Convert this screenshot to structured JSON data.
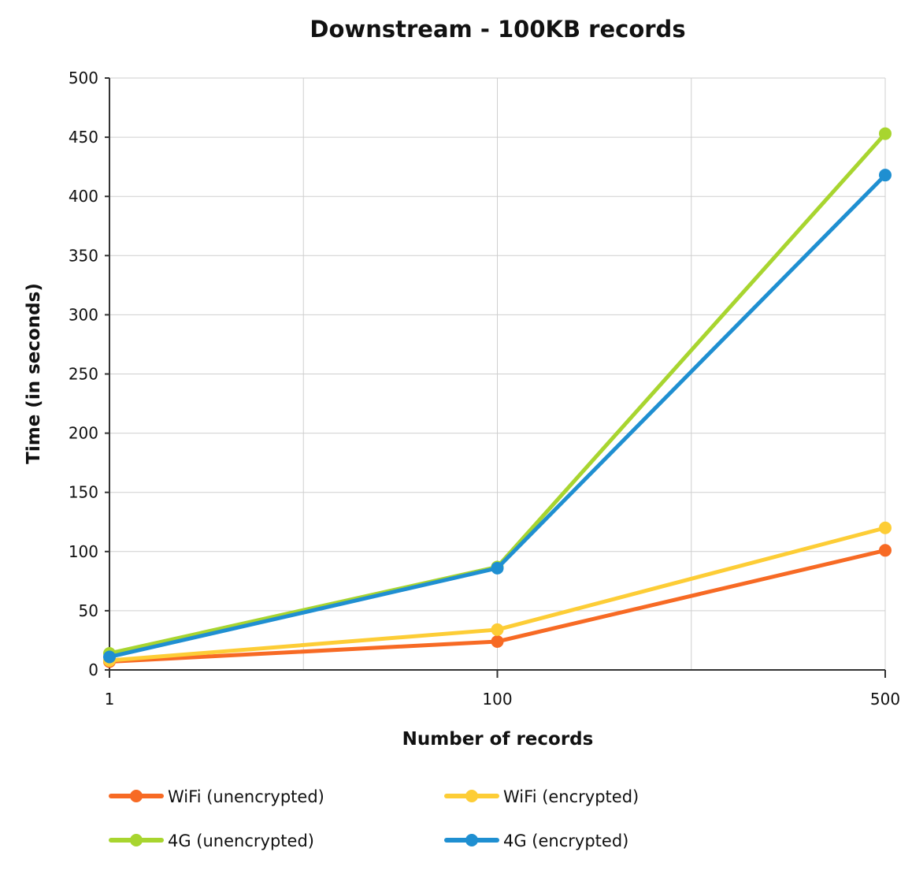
{
  "chart_data": {
    "type": "line",
    "title": "Downstream - 100KB records",
    "xlabel": "Number of records",
    "ylabel": "Time (in seconds)",
    "x": [
      "1",
      "100",
      "500"
    ],
    "x_ticks": [
      "1",
      "100",
      "500"
    ],
    "x_minor_grid": true,
    "ylim": [
      0,
      500
    ],
    "y_ticks": [
      0,
      50,
      100,
      150,
      200,
      250,
      300,
      350,
      400,
      450,
      500
    ],
    "grid": true,
    "legend_position": "bottom",
    "series": [
      {
        "name": "WiFi (unencrypted)",
        "color": "#f76a24",
        "values": [
          7,
          24,
          101
        ]
      },
      {
        "name": "WiFi (encrypted)",
        "color": "#fdcd36",
        "values": [
          8,
          34,
          120
        ]
      },
      {
        "name": "4G (unencrypted)",
        "color": "#a8d52f",
        "values": [
          14,
          87,
          453
        ]
      },
      {
        "name": "4G (encrypted)",
        "color": "#1f8fd1",
        "values": [
          11,
          86,
          418
        ]
      }
    ]
  }
}
